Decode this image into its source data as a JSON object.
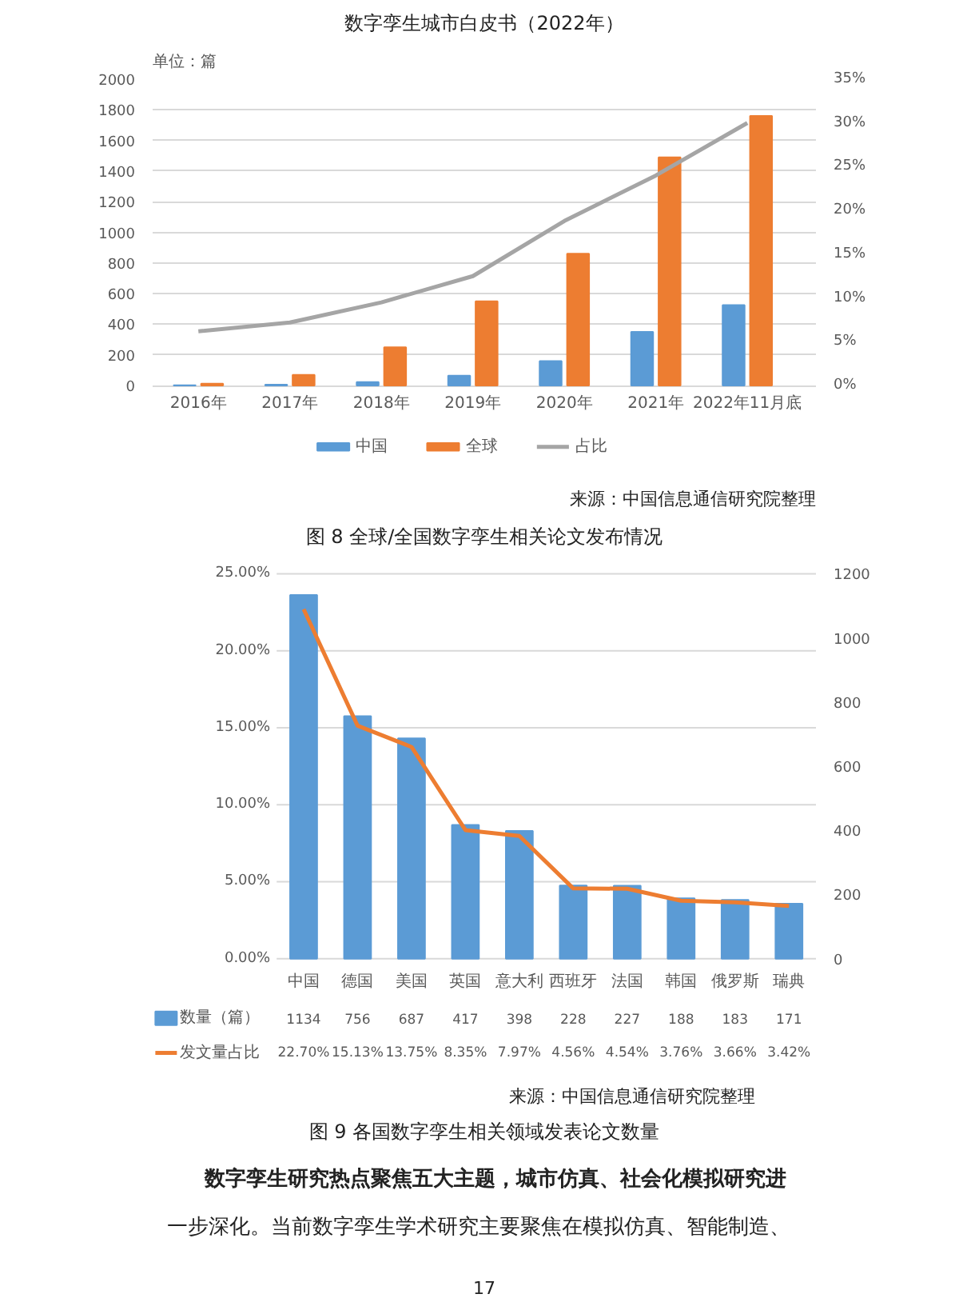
{
  "chart_data": [
    {
      "type": "bar",
      "title": "图 8 全球/全国数字孪生相关论文发布情况",
      "ylabel": "单位：篇",
      "annotations": [
        "数字孪生城市白皮书（2022年）",
        "来源：中国信息通信研究院整理"
      ],
      "categories": [
        "2016年",
        "2017年",
        "2018年",
        "2019年",
        "2020年",
        "2021年",
        "2022年11月底"
      ],
      "series": [
        {
          "name": "中国",
          "color": "#5b9bd5",
          "values": [
            2,
            5,
            22,
            65,
            160,
            350,
            525
          ]
        },
        {
          "name": "全球",
          "color": "#ed7d31",
          "values": [
            12,
            70,
            250,
            550,
            860,
            1490,
            1760
          ]
        },
        {
          "name": "占比",
          "type": "line",
          "axis": "y2",
          "color": "#a5a5a5",
          "values": [
            6.2,
            7.2,
            9.5,
            12.5,
            18.8,
            24,
            30
          ]
        }
      ],
      "ylim": [
        0,
        2000
      ],
      "yticks": [
        0,
        200,
        400,
        600,
        800,
        1000,
        1200,
        1400,
        1600,
        1800,
        2000
      ],
      "y2lim": [
        0,
        35
      ],
      "y2ticks": [
        {
          "value": 0,
          "label": "0%"
        },
        {
          "value": 5,
          "label": "5%"
        },
        {
          "value": 10,
          "label": "10%"
        },
        {
          "value": 15,
          "label": "15%"
        },
        {
          "value": 20,
          "label": "20%"
        },
        {
          "value": 25,
          "label": "25%"
        },
        {
          "value": 30,
          "label": "30%"
        },
        {
          "value": 35,
          "label": "35%"
        }
      ],
      "grid": "y",
      "legend": "bottom"
    },
    {
      "type": "bar",
      "title": "图 9 各国数字孪生相关领域发表论文数量",
      "annotations": [
        "来源：中国信息通信研究院整理",
        "数字孪生研究热点聚焦五大主题，城市仿真、社会化模拟研究进",
        "一步深化。当前数字孪生学术研究主要聚焦在模拟仿真、智能制造、",
        "17"
      ],
      "categories": [
        "中国",
        "德国",
        "美国",
        "英国",
        "意大利",
        "西班牙",
        "法国",
        "韩国",
        "俄罗斯",
        "瑞典"
      ],
      "series": [
        {
          "name": "数量（篇）",
          "color": "#5b9bd5",
          "axis": "y2",
          "values": [
            1134,
            756,
            687,
            417,
            398,
            228,
            227,
            188,
            183,
            171
          ],
          "value_labels": [
            "1134",
            "756",
            "687",
            "417",
            "398",
            "228",
            "227",
            "188",
            "183",
            "171"
          ]
        },
        {
          "name": "发文量占比",
          "type": "line",
          "color": "#ed7d31",
          "values": [
            22.7,
            15.13,
            13.75,
            8.35,
            7.97,
            4.56,
            4.54,
            3.76,
            3.66,
            3.42
          ],
          "value_labels": [
            "22.70%",
            "15.13%",
            "13.75%",
            "8.35%",
            "7.97%",
            "4.56%",
            "4.54%",
            "3.76%",
            "3.66%",
            "3.42%"
          ]
        }
      ],
      "ylim": [
        0,
        25
      ],
      "yticks": [
        {
          "value": 0,
          "label": "0.00%"
        },
        {
          "value": 5,
          "label": "5.00%"
        },
        {
          "value": 10,
          "label": "10.00%"
        },
        {
          "value": 15,
          "label": "15.00%"
        },
        {
          "value": 20,
          "label": "20.00%"
        },
        {
          "value": 25,
          "label": "25.00%"
        }
      ],
      "y2lim": [
        0,
        1200
      ],
      "y2ticks": [
        0,
        200,
        400,
        600,
        800,
        1000,
        1200
      ],
      "grid": "y",
      "legend": "bottom"
    }
  ]
}
